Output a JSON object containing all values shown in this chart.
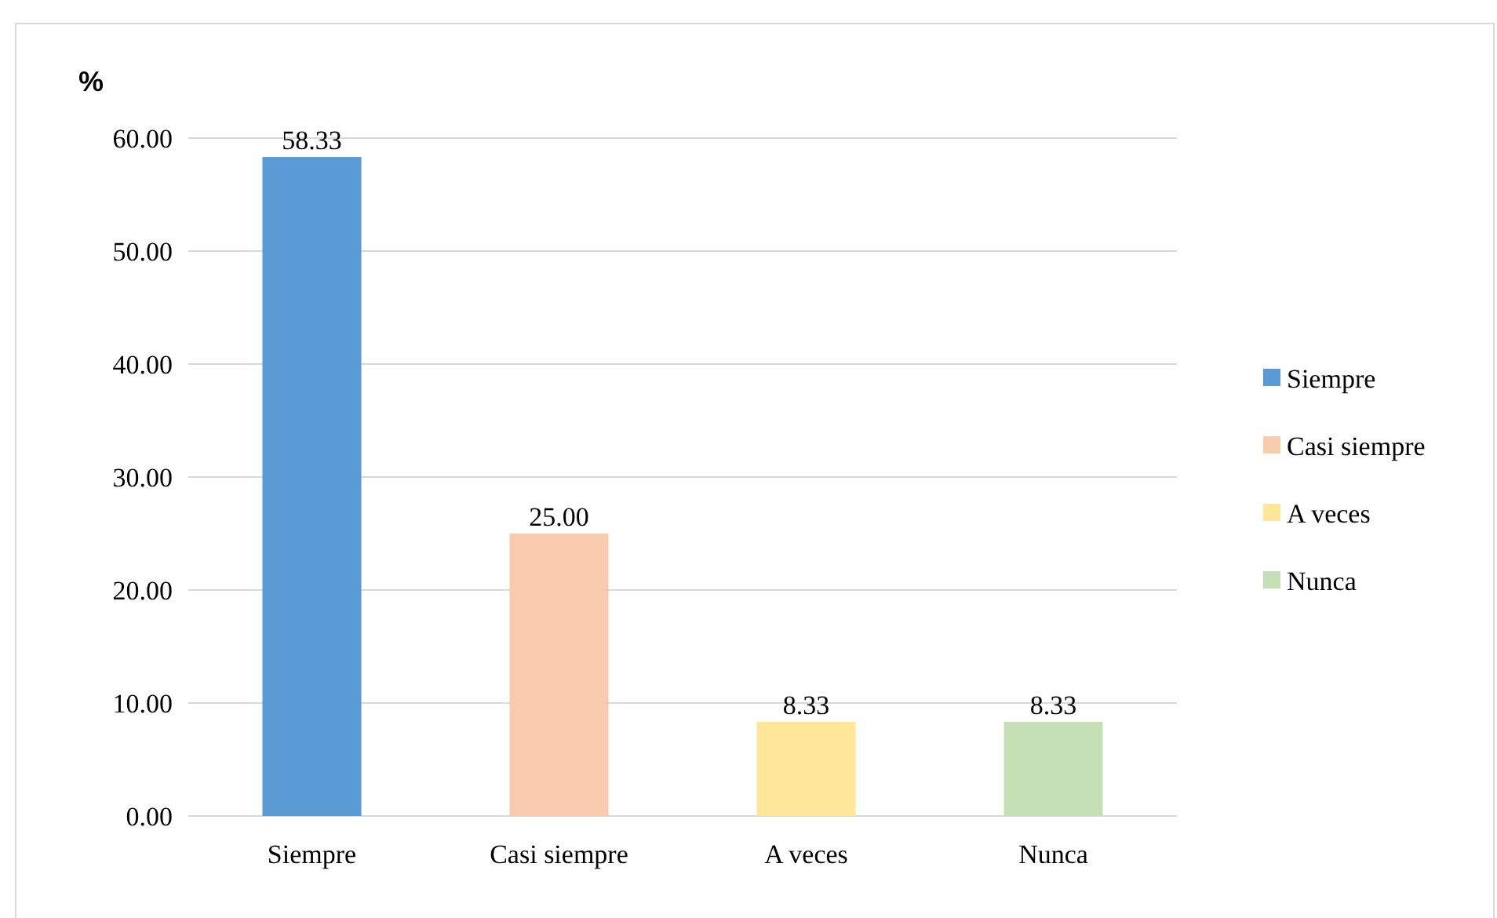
{
  "chart_data": {
    "type": "bar",
    "ylabel": "%",
    "stacked": true,
    "categories": [
      "Siempre",
      "Casi siempre",
      "A veces",
      "Nunca"
    ],
    "series": [
      {
        "name": "Siempre",
        "color": "#5b9bd5",
        "values": [
          58.33,
          null,
          null,
          null
        ],
        "value_labels": [
          "58.33",
          null,
          null,
          null
        ]
      },
      {
        "name": "Casi siempre",
        "color": "#f8cbad",
        "values": [
          null,
          25.0,
          null,
          null
        ],
        "value_labels": [
          null,
          "25.00",
          null,
          null
        ]
      },
      {
        "name": "A veces",
        "color": "#ffe699",
        "values": [
          null,
          null,
          8.33,
          null
        ],
        "value_labels": [
          null,
          null,
          "8.33",
          null
        ]
      },
      {
        "name": "Nunca",
        "color": "#c5e0b4",
        "values": [
          null,
          null,
          null,
          8.33
        ],
        "value_labels": [
          null,
          null,
          null,
          "8.33"
        ]
      }
    ],
    "ylim": [
      0,
      60
    ],
    "yticks": [
      {
        "value": 0,
        "label": "0.00"
      },
      {
        "value": 10,
        "label": "10.00"
      },
      {
        "value": 20,
        "label": "20.00"
      },
      {
        "value": 30,
        "label": "30.00"
      },
      {
        "value": 40,
        "label": "40.00"
      },
      {
        "value": 50,
        "label": "50.00"
      },
      {
        "value": 60,
        "label": "60.00"
      }
    ],
    "grid": "y",
    "legend": "right"
  }
}
